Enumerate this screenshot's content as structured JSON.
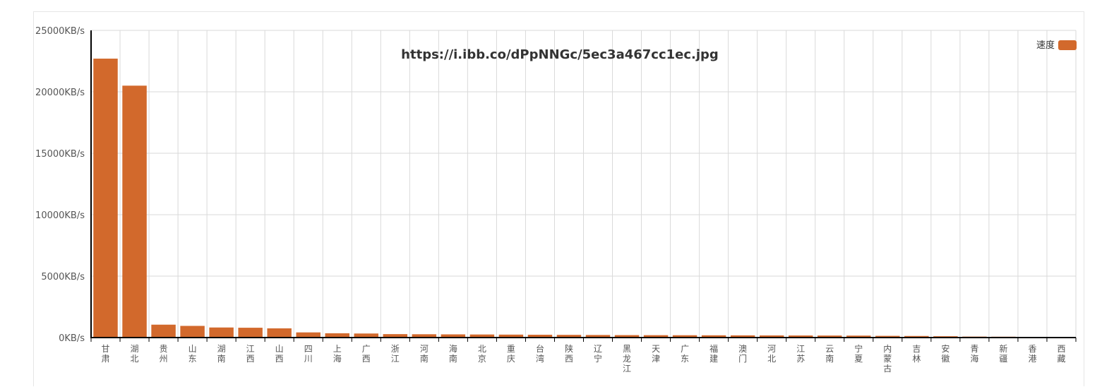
{
  "chart_data": {
    "type": "bar",
    "title": "https://i.ibb.co/dPpNNGc/5ec3a467cc1ec.jpg",
    "xlabel": "",
    "ylabel": "",
    "ylim": [
      0,
      25000
    ],
    "y_tick_values": [
      0,
      5000,
      10000,
      15000,
      20000,
      25000
    ],
    "y_tick_labels": [
      "0KB/s",
      "5000KB/s",
      "10000KB/s",
      "15000KB/s",
      "20000KB/s",
      "25000KB/s"
    ],
    "grid": true,
    "legend_position": "top-right",
    "bar_color": "#d2692c",
    "categories": [
      "甘肃",
      "湖北",
      "贵州",
      "山东",
      "湖南",
      "江西",
      "山西",
      "四川",
      "上海",
      "广西",
      "浙江",
      "河南",
      "海南",
      "北京",
      "重庆",
      "台湾",
      "陕西",
      "辽宁",
      "黑龙江",
      "天津",
      "广东",
      "福建",
      "澳门",
      "河北",
      "江苏",
      "云南",
      "宁夏",
      "内蒙古",
      "吉林",
      "安徽",
      "青海",
      "新疆",
      "香港",
      "西藏"
    ],
    "series": [
      {
        "name": "速度",
        "values": [
          22700,
          20500,
          1050,
          950,
          820,
          800,
          750,
          420,
          350,
          330,
          280,
          270,
          260,
          250,
          240,
          230,
          220,
          210,
          200,
          195,
          190,
          185,
          180,
          175,
          170,
          165,
          160,
          140,
          130,
          110,
          80,
          70,
          30,
          20
        ]
      }
    ]
  }
}
